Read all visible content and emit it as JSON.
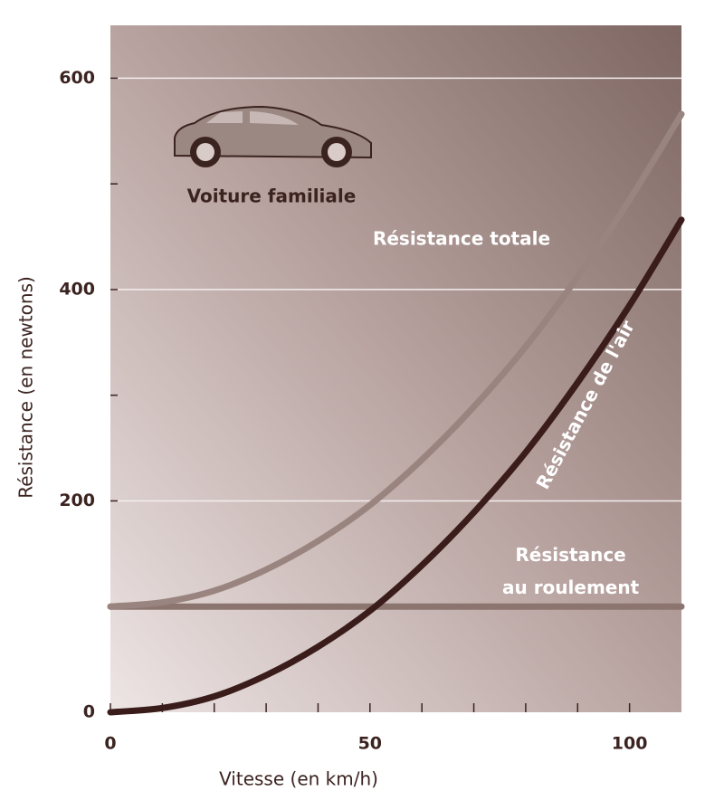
{
  "chart_data": {
    "type": "line",
    "x_label": "Vitesse (en km/h)",
    "y_label": "Résistance (en newtons)",
    "annotation": "Voiture familiale",
    "x": [
      0,
      10,
      20,
      30,
      40,
      50,
      60,
      70,
      80,
      90,
      100,
      110
    ],
    "series": [
      {
        "name": "Résistance totale",
        "color": "#9a847f",
        "values": [
          100,
          104,
          115,
          135,
          162,
          196,
          239,
          289,
          346,
          412,
          485,
          566
        ]
      },
      {
        "name": "Résistance de l'air",
        "color": "#3a1d1a",
        "values": [
          0,
          4,
          15,
          35,
          62,
          96,
          139,
          189,
          246,
          312,
          385,
          466
        ]
      },
      {
        "name": "Résistance\nau roulement",
        "color": "#8c746f",
        "values": [
          100,
          100,
          100,
          100,
          100,
          100,
          100,
          100,
          100,
          100,
          100,
          100
        ]
      }
    ],
    "xlim": [
      0,
      110
    ],
    "ylim": [
      0,
      650
    ],
    "xticks": [
      0,
      50,
      100
    ],
    "xminor_ticks": [
      10,
      20,
      30,
      40,
      60,
      70,
      80,
      90
    ],
    "yticks": [
      0,
      200,
      400,
      600
    ],
    "yminor_ticks": [
      100,
      300,
      500
    ],
    "grid": true
  }
}
